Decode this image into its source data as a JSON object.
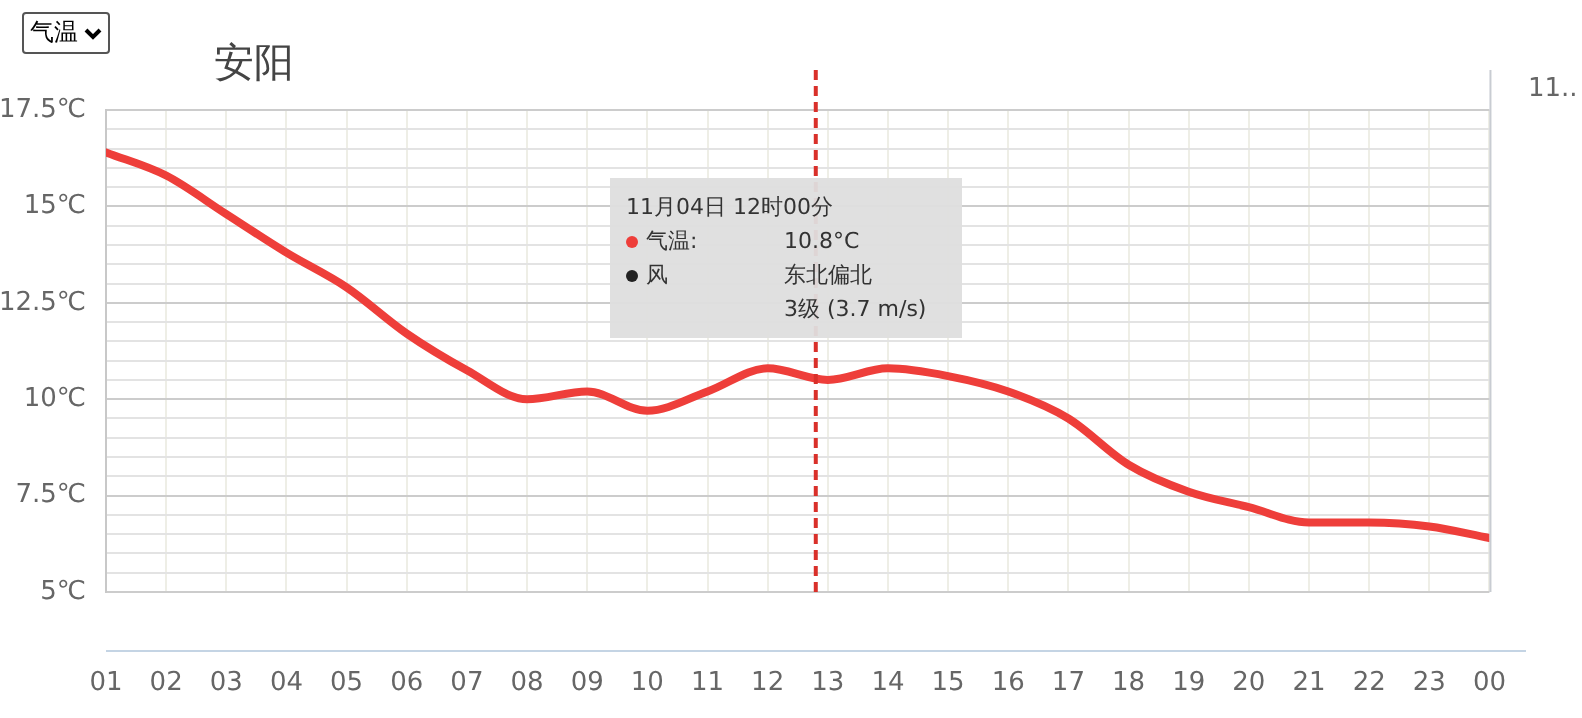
{
  "chart_data": {
    "type": "line",
    "title": "安阳",
    "x": [
      "--11-04T01:00",
      "--11-04T02:00",
      "--11-04T03:00",
      "--11-04T04:00",
      "--11-04T05:00",
      "--11-04T06:00",
      "--11-04T07:00",
      "--11-04T08:00",
      "--11-04T09:00",
      "--11-04T10:00",
      "--11-04T11:00",
      "--11-04T12:00",
      "--11-04T13:00",
      "--11-04T14:00",
      "--11-04T15:00",
      "--11-04T16:00",
      "--11-04T17:00",
      "--11-04T18:00",
      "--11-04T19:00",
      "--11-04T20:00",
      "--11-04T21:00",
      "--11-04T22:00",
      "--11-04T23:00",
      "--11-05T00:00"
    ],
    "series": [
      {
        "color": "#ee3e3a",
        "values": [
          16.4,
          15.8,
          14.8,
          13.8,
          12.9,
          11.7,
          10.75,
          10.0,
          10.2,
          9.7,
          10.2,
          10.8,
          10.5,
          10.8,
          10.6,
          10.2,
          9.5,
          8.3,
          7.6,
          7.2,
          6.8,
          6.8,
          6.7,
          6.4
        ]
      }
    ],
    "xlim": [
      "--11-04T01:00",
      "--11-05T00:00"
    ],
    "xticks": [
      {
        "value": "--11-04T01:00",
        "label": "01"
      },
      {
        "value": "--11-04T02:00",
        "label": "02"
      },
      {
        "value": "--11-04T03:00",
        "label": "03"
      },
      {
        "value": "--11-04T04:00",
        "label": "04"
      },
      {
        "value": "--11-04T05:00",
        "label": "05"
      },
      {
        "value": "--11-04T06:00",
        "label": "06"
      },
      {
        "value": "--11-04T07:00",
        "label": "07"
      },
      {
        "value": "--11-04T08:00",
        "label": "08"
      },
      {
        "value": "--11-04T09:00",
        "label": "09"
      },
      {
        "value": "--11-04T10:00",
        "label": "10"
      },
      {
        "value": "--11-04T11:00",
        "label": "11"
      },
      {
        "value": "--11-04T12:00",
        "label": "12"
      },
      {
        "value": "--11-04T13:00",
        "label": "13"
      },
      {
        "value": "--11-04T14:00",
        "label": "14"
      },
      {
        "value": "--11-04T15:00",
        "label": "15"
      },
      {
        "value": "--11-04T16:00",
        "label": "16"
      },
      {
        "value": "--11-04T17:00",
        "label": "17"
      },
      {
        "value": "--11-04T18:00",
        "label": "18"
      },
      {
        "value": "--11-04T19:00",
        "label": "19"
      },
      {
        "value": "--11-04T20:00",
        "label": "20"
      },
      {
        "value": "--11-04T21:00",
        "label": "21"
      },
      {
        "value": "--11-04T22:00",
        "label": "22"
      },
      {
        "value": "--11-04T23:00",
        "label": "23"
      },
      {
        "value": "--11-05T00:00",
        "label": "00"
      }
    ],
    "ylim": [
      5,
      17.5
    ],
    "yticks": [
      {
        "value": 5,
        "label": "5℃"
      },
      {
        "value": 5.5,
        "label": null
      },
      {
        "value": 6,
        "label": null
      },
      {
        "value": 6.5,
        "label": null
      },
      {
        "value": 7,
        "label": null
      },
      {
        "value": 7.5,
        "label": "7.5℃"
      },
      {
        "value": 8,
        "label": null
      },
      {
        "value": 8.5,
        "label": null
      },
      {
        "value": 9,
        "label": null
      },
      {
        "value": 9.5,
        "label": null
      },
      {
        "value": 10,
        "label": "10℃"
      },
      {
        "value": 10.5,
        "label": null
      },
      {
        "value": 11,
        "label": null
      },
      {
        "value": 11.5,
        "label": null
      },
      {
        "value": 12,
        "label": null
      },
      {
        "value": 12.5,
        "label": "12.5℃"
      },
      {
        "value": 13,
        "label": null
      },
      {
        "value": 13.5,
        "label": null
      },
      {
        "value": 14,
        "label": null
      },
      {
        "value": 14.5,
        "label": null
      },
      {
        "value": 15,
        "label": "15℃"
      },
      {
        "value": 15.5,
        "label": null
      },
      {
        "value": 16,
        "label": null
      },
      {
        "value": 16.5,
        "label": null
      },
      {
        "value": 17,
        "label": null
      },
      {
        "value": 17.5,
        "label": "17.5℃"
      }
    ],
    "grid": true,
    "legend": false,
    "marker": "none",
    "line_style": "solid",
    "ref_lines": [
      {
        "axis": "x",
        "value": "--11-04T12:48",
        "color": "#d9302a",
        "line_style": "dashed"
      }
    ],
    "annotations": [
      "气温",
      "11月04日 12时00分",
      "气温:",
      "10.8°C",
      "风",
      "东北偏北",
      "3级 (3.7 m/s)",
      "11.."
    ]
  }
}
